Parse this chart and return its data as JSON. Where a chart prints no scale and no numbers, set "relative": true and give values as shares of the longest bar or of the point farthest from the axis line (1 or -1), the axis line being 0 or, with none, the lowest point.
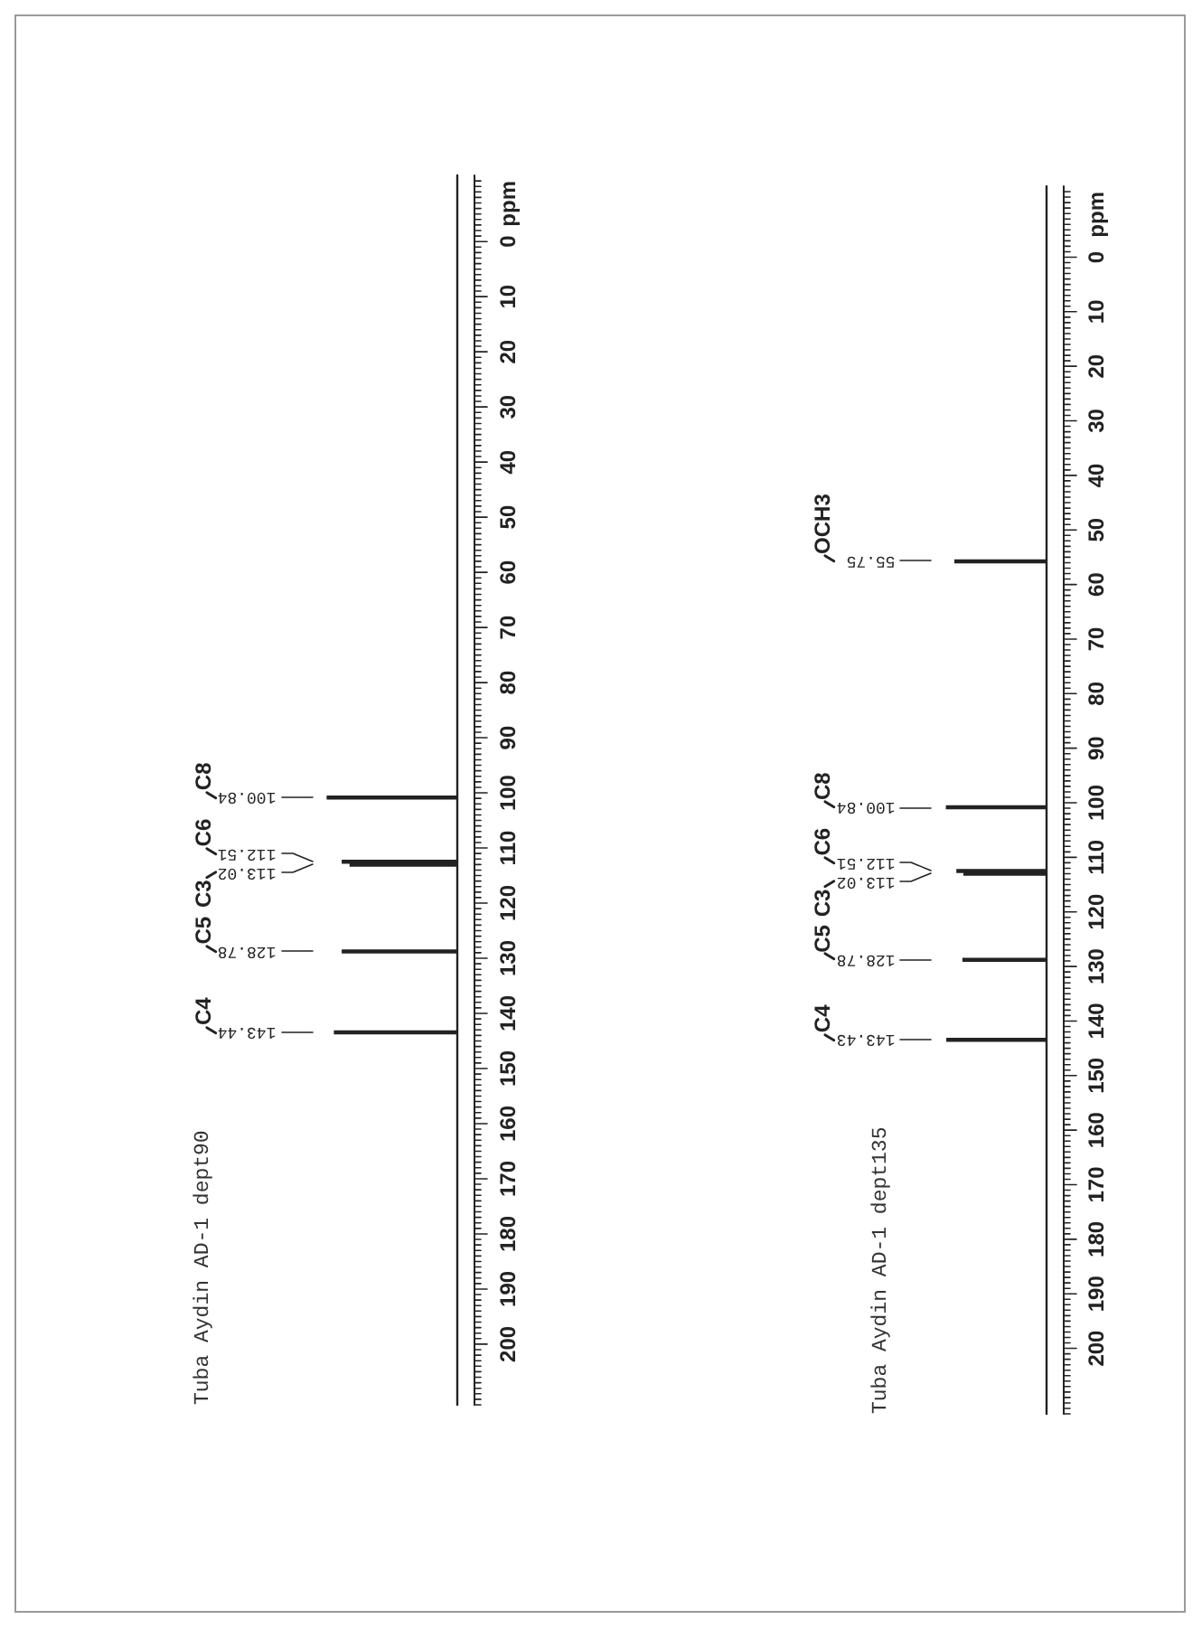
{
  "chart_data": [
    {
      "type": "bar",
      "orientation": "horizontal",
      "title": "Tuba Aydin AD-1 dept90",
      "ylabel": "ppm",
      "relative": true,
      "color": "#222222",
      "x": [
        143.44,
        128.78,
        113.02,
        112.51,
        100.84
      ],
      "values": [
        0.94,
        0.88,
        0.82,
        0.88,
        1
      ],
      "annotations": [
        "143.44",
        "C4",
        "128.78",
        "C5",
        "113.02",
        "C3",
        "112.51",
        "C6",
        "100.84",
        "C8"
      ],
      "ylim": [
        211,
        -12
      ],
      "yticks": [
        {
          "value": -11,
          "label": null
        },
        {
          "value": -10,
          "label": null
        },
        {
          "value": -9,
          "label": null
        },
        {
          "value": -8,
          "label": null
        },
        {
          "value": -7,
          "label": null
        },
        {
          "value": -6,
          "label": null
        },
        {
          "value": -5,
          "label": null
        },
        {
          "value": -4,
          "label": null
        },
        {
          "value": -3,
          "label": null
        },
        {
          "value": -2,
          "label": null
        },
        {
          "value": -1,
          "label": null
        },
        0,
        {
          "value": 1,
          "label": null
        },
        {
          "value": 2,
          "label": null
        },
        {
          "value": 3,
          "label": null
        },
        {
          "value": 4,
          "label": null
        },
        {
          "value": 5,
          "label": null
        },
        {
          "value": 6,
          "label": null
        },
        {
          "value": 7,
          "label": null
        },
        {
          "value": 8,
          "label": null
        },
        {
          "value": 9,
          "label": null
        },
        10,
        {
          "value": 11,
          "label": null
        },
        {
          "value": 12,
          "label": null
        },
        {
          "value": 13,
          "label": null
        },
        {
          "value": 14,
          "label": null
        },
        {
          "value": 15,
          "label": null
        },
        {
          "value": 16,
          "label": null
        },
        {
          "value": 17,
          "label": null
        },
        {
          "value": 18,
          "label": null
        },
        {
          "value": 19,
          "label": null
        },
        20,
        {
          "value": 21,
          "label": null
        },
        {
          "value": 22,
          "label": null
        },
        {
          "value": 23,
          "label": null
        },
        {
          "value": 24,
          "label": null
        },
        {
          "value": 25,
          "label": null
        },
        {
          "value": 26,
          "label": null
        },
        {
          "value": 27,
          "label": null
        },
        {
          "value": 28,
          "label": null
        },
        {
          "value": 29,
          "label": null
        },
        30,
        {
          "value": 31,
          "label": null
        },
        {
          "value": 32,
          "label": null
        },
        {
          "value": 33,
          "label": null
        },
        {
          "value": 34,
          "label": null
        },
        {
          "value": 35,
          "label": null
        },
        {
          "value": 36,
          "label": null
        },
        {
          "value": 37,
          "label": null
        },
        {
          "value": 38,
          "label": null
        },
        {
          "value": 39,
          "label": null
        },
        40,
        {
          "value": 41,
          "label": null
        },
        {
          "value": 42,
          "label": null
        },
        {
          "value": 43,
          "label": null
        },
        {
          "value": 44,
          "label": null
        },
        {
          "value": 45,
          "label": null
        },
        {
          "value": 46,
          "label": null
        },
        {
          "value": 47,
          "label": null
        },
        {
          "value": 48,
          "label": null
        },
        {
          "value": 49,
          "label": null
        },
        50,
        {
          "value": 51,
          "label": null
        },
        {
          "value": 52,
          "label": null
        },
        {
          "value": 53,
          "label": null
        },
        {
          "value": 54,
          "label": null
        },
        {
          "value": 55,
          "label": null
        },
        {
          "value": 56,
          "label": null
        },
        {
          "value": 57,
          "label": null
        },
        {
          "value": 58,
          "label": null
        },
        {
          "value": 59,
          "label": null
        },
        60,
        {
          "value": 61,
          "label": null
        },
        {
          "value": 62,
          "label": null
        },
        {
          "value": 63,
          "label": null
        },
        {
          "value": 64,
          "label": null
        },
        {
          "value": 65,
          "label": null
        },
        {
          "value": 66,
          "label": null
        },
        {
          "value": 67,
          "label": null
        },
        {
          "value": 68,
          "label": null
        },
        {
          "value": 69,
          "label": null
        },
        70,
        {
          "value": 71,
          "label": null
        },
        {
          "value": 72,
          "label": null
        },
        {
          "value": 73,
          "label": null
        },
        {
          "value": 74,
          "label": null
        },
        {
          "value": 75,
          "label": null
        },
        {
          "value": 76,
          "label": null
        },
        {
          "value": 77,
          "label": null
        },
        {
          "value": 78,
          "label": null
        },
        {
          "value": 79,
          "label": null
        },
        80,
        {
          "value": 81,
          "label": null
        },
        {
          "value": 82,
          "label": null
        },
        {
          "value": 83,
          "label": null
        },
        {
          "value": 84,
          "label": null
        },
        {
          "value": 85,
          "label": null
        },
        {
          "value": 86,
          "label": null
        },
        {
          "value": 87,
          "label": null
        },
        {
          "value": 88,
          "label": null
        },
        {
          "value": 89,
          "label": null
        },
        90,
        {
          "value": 91,
          "label": null
        },
        {
          "value": 92,
          "label": null
        },
        {
          "value": 93,
          "label": null
        },
        {
          "value": 94,
          "label": null
        },
        {
          "value": 95,
          "label": null
        },
        {
          "value": 96,
          "label": null
        },
        {
          "value": 97,
          "label": null
        },
        {
          "value": 98,
          "label": null
        },
        {
          "value": 99,
          "label": null
        },
        100,
        {
          "value": 101,
          "label": null
        },
        {
          "value": 102,
          "label": null
        },
        {
          "value": 103,
          "label": null
        },
        {
          "value": 104,
          "label": null
        },
        {
          "value": 105,
          "label": null
        },
        {
          "value": 106,
          "label": null
        },
        {
          "value": 107,
          "label": null
        },
        {
          "value": 108,
          "label": null
        },
        {
          "value": 109,
          "label": null
        },
        110,
        {
          "value": 111,
          "label": null
        },
        {
          "value": 112,
          "label": null
        },
        {
          "value": 113,
          "label": null
        },
        {
          "value": 114,
          "label": null
        },
        {
          "value": 115,
          "label": null
        },
        {
          "value": 116,
          "label": null
        },
        {
          "value": 117,
          "label": null
        },
        {
          "value": 118,
          "label": null
        },
        {
          "value": 119,
          "label": null
        },
        120,
        {
          "value": 121,
          "label": null
        },
        {
          "value": 122,
          "label": null
        },
        {
          "value": 123,
          "label": null
        },
        {
          "value": 124,
          "label": null
        },
        {
          "value": 125,
          "label": null
        },
        {
          "value": 126,
          "label": null
        },
        {
          "value": 127,
          "label": null
        },
        {
          "value": 128,
          "label": null
        },
        {
          "value": 129,
          "label": null
        },
        130,
        {
          "value": 131,
          "label": null
        },
        {
          "value": 132,
          "label": null
        },
        {
          "value": 133,
          "label": null
        },
        {
          "value": 134,
          "label": null
        },
        {
          "value": 135,
          "label": null
        },
        {
          "value": 136,
          "label": null
        },
        {
          "value": 137,
          "label": null
        },
        {
          "value": 138,
          "label": null
        },
        {
          "value": 139,
          "label": null
        },
        140,
        {
          "value": 141,
          "label": null
        },
        {
          "value": 142,
          "label": null
        },
        {
          "value": 143,
          "label": null
        },
        {
          "value": 144,
          "label": null
        },
        {
          "value": 145,
          "label": null
        },
        {
          "value": 146,
          "label": null
        },
        {
          "value": 147,
          "label": null
        },
        {
          "value": 148,
          "label": null
        },
        {
          "value": 149,
          "label": null
        },
        150,
        {
          "value": 151,
          "label": null
        },
        {
          "value": 152,
          "label": null
        },
        {
          "value": 153,
          "label": null
        },
        {
          "value": 154,
          "label": null
        },
        {
          "value": 155,
          "label": null
        },
        {
          "value": 156,
          "label": null
        },
        {
          "value": 157,
          "label": null
        },
        {
          "value": 158,
          "label": null
        },
        {
          "value": 159,
          "label": null
        },
        160,
        {
          "value": 161,
          "label": null
        },
        {
          "value": 162,
          "label": null
        },
        {
          "value": 163,
          "label": null
        },
        {
          "value": 164,
          "label": null
        },
        {
          "value": 165,
          "label": null
        },
        {
          "value": 166,
          "label": null
        },
        {
          "value": 167,
          "label": null
        },
        {
          "value": 168,
          "label": null
        },
        {
          "value": 169,
          "label": null
        },
        170,
        {
          "value": 171,
          "label": null
        },
        {
          "value": 172,
          "label": null
        },
        {
          "value": 173,
          "label": null
        },
        {
          "value": 174,
          "label": null
        },
        {
          "value": 175,
          "label": null
        },
        {
          "value": 176,
          "label": null
        },
        {
          "value": 177,
          "label": null
        },
        {
          "value": 178,
          "label": null
        },
        {
          "value": 179,
          "label": null
        },
        180,
        {
          "value": 181,
          "label": null
        },
        {
          "value": 182,
          "label": null
        },
        {
          "value": 183,
          "label": null
        },
        {
          "value": 184,
          "label": null
        },
        {
          "value": 185,
          "label": null
        },
        {
          "value": 186,
          "label": null
        },
        {
          "value": 187,
          "label": null
        },
        {
          "value": 188,
          "label": null
        },
        {
          "value": 189,
          "label": null
        },
        190,
        {
          "value": 191,
          "label": null
        },
        {
          "value": 192,
          "label": null
        },
        {
          "value": 193,
          "label": null
        },
        {
          "value": 194,
          "label": null
        },
        {
          "value": 195,
          "label": null
        },
        {
          "value": 196,
          "label": null
        },
        {
          "value": 197,
          "label": null
        },
        {
          "value": 198,
          "label": null
        },
        {
          "value": 199,
          "label": null
        },
        200,
        {
          "value": 201,
          "label": null
        },
        {
          "value": 202,
          "label": null
        },
        {
          "value": 203,
          "label": null
        },
        {
          "value": 204,
          "label": null
        },
        {
          "value": 205,
          "label": null
        },
        {
          "value": 206,
          "label": null
        },
        {
          "value": 207,
          "label": null
        },
        {
          "value": 208,
          "label": null
        },
        {
          "value": 209,
          "label": null
        },
        {
          "value": 210,
          "label": null
        },
        {
          "value": 211,
          "label": null
        }
      ]
    },
    {
      "type": "bar",
      "orientation": "horizontal",
      "title": "Tuba Aydin AD-1 dept135",
      "ylabel": "ppm",
      "relative": true,
      "color": "#222222",
      "x": [
        143.43,
        128.78,
        113.02,
        112.51,
        100.84,
        55.75
      ],
      "values": [
        0.99,
        0.83,
        0.82,
        0.89,
        1,
        0.91
      ],
      "annotations": [
        "143.43",
        "C4",
        "128.78",
        "C5",
        "113.02",
        "C3",
        "112.51",
        "C6",
        "100.84",
        "C8",
        "55.75",
        "OCH3"
      ],
      "ylim": [
        212,
        -13
      ],
      "yticks": [
        {
          "value": -12,
          "label": null
        },
        {
          "value": -11,
          "label": null
        },
        {
          "value": -10,
          "label": null
        },
        {
          "value": -9,
          "label": null
        },
        {
          "value": -8,
          "label": null
        },
        {
          "value": -7,
          "label": null
        },
        {
          "value": -6,
          "label": null
        },
        {
          "value": -5,
          "label": null
        },
        {
          "value": -4,
          "label": null
        },
        {
          "value": -3,
          "label": null
        },
        {
          "value": -2,
          "label": null
        },
        {
          "value": -1,
          "label": null
        },
        0,
        {
          "value": 1,
          "label": null
        },
        {
          "value": 2,
          "label": null
        },
        {
          "value": 3,
          "label": null
        },
        {
          "value": 4,
          "label": null
        },
        {
          "value": 5,
          "label": null
        },
        {
          "value": 6,
          "label": null
        },
        {
          "value": 7,
          "label": null
        },
        {
          "value": 8,
          "label": null
        },
        {
          "value": 9,
          "label": null
        },
        10,
        {
          "value": 11,
          "label": null
        },
        {
          "value": 12,
          "label": null
        },
        {
          "value": 13,
          "label": null
        },
        {
          "value": 14,
          "label": null
        },
        {
          "value": 15,
          "label": null
        },
        {
          "value": 16,
          "label": null
        },
        {
          "value": 17,
          "label": null
        },
        {
          "value": 18,
          "label": null
        },
        {
          "value": 19,
          "label": null
        },
        20,
        {
          "value": 21,
          "label": null
        },
        {
          "value": 22,
          "label": null
        },
        {
          "value": 23,
          "label": null
        },
        {
          "value": 24,
          "label": null
        },
        {
          "value": 25,
          "label": null
        },
        {
          "value": 26,
          "label": null
        },
        {
          "value": 27,
          "label": null
        },
        {
          "value": 28,
          "label": null
        },
        {
          "value": 29,
          "label": null
        },
        30,
        {
          "value": 31,
          "label": null
        },
        {
          "value": 32,
          "label": null
        },
        {
          "value": 33,
          "label": null
        },
        {
          "value": 34,
          "label": null
        },
        {
          "value": 35,
          "label": null
        },
        {
          "value": 36,
          "label": null
        },
        {
          "value": 37,
          "label": null
        },
        {
          "value": 38,
          "label": null
        },
        {
          "value": 39,
          "label": null
        },
        40,
        {
          "value": 41,
          "label": null
        },
        {
          "value": 42,
          "label": null
        },
        {
          "value": 43,
          "label": null
        },
        {
          "value": 44,
          "label": null
        },
        {
          "value": 45,
          "label": null
        },
        {
          "value": 46,
          "label": null
        },
        {
          "value": 47,
          "label": null
        },
        {
          "value": 48,
          "label": null
        },
        {
          "value": 49,
          "label": null
        },
        50,
        {
          "value": 51,
          "label": null
        },
        {
          "value": 52,
          "label": null
        },
        {
          "value": 53,
          "label": null
        },
        {
          "value": 54,
          "label": null
        },
        {
          "value": 55,
          "label": null
        },
        {
          "value": 56,
          "label": null
        },
        {
          "value": 57,
          "label": null
        },
        {
          "value": 58,
          "label": null
        },
        {
          "value": 59,
          "label": null
        },
        60,
        {
          "value": 61,
          "label": null
        },
        {
          "value": 62,
          "label": null
        },
        {
          "value": 63,
          "label": null
        },
        {
          "value": 64,
          "label": null
        },
        {
          "value": 65,
          "label": null
        },
        {
          "value": 66,
          "label": null
        },
        {
          "value": 67,
          "label": null
        },
        {
          "value": 68,
          "label": null
        },
        {
          "value": 69,
          "label": null
        },
        70,
        {
          "value": 71,
          "label": null
        },
        {
          "value": 72,
          "label": null
        },
        {
          "value": 73,
          "label": null
        },
        {
          "value": 74,
          "label": null
        },
        {
          "value": 75,
          "label": null
        },
        {
          "value": 76,
          "label": null
        },
        {
          "value": 77,
          "label": null
        },
        {
          "value": 78,
          "label": null
        },
        {
          "value": 79,
          "label": null
        },
        80,
        {
          "value": 81,
          "label": null
        },
        {
          "value": 82,
          "label": null
        },
        {
          "value": 83,
          "label": null
        },
        {
          "value": 84,
          "label": null
        },
        {
          "value": 85,
          "label": null
        },
        {
          "value": 86,
          "label": null
        },
        {
          "value": 87,
          "label": null
        },
        {
          "value": 88,
          "label": null
        },
        {
          "value": 89,
          "label": null
        },
        90,
        {
          "value": 91,
          "label": null
        },
        {
          "value": 92,
          "label": null
        },
        {
          "value": 93,
          "label": null
        },
        {
          "value": 94,
          "label": null
        },
        {
          "value": 95,
          "label": null
        },
        {
          "value": 96,
          "label": null
        },
        {
          "value": 97,
          "label": null
        },
        {
          "value": 98,
          "label": null
        },
        {
          "value": 99,
          "label": null
        },
        100,
        {
          "value": 101,
          "label": null
        },
        {
          "value": 102,
          "label": null
        },
        {
          "value": 103,
          "label": null
        },
        {
          "value": 104,
          "label": null
        },
        {
          "value": 105,
          "label": null
        },
        {
          "value": 106,
          "label": null
        },
        {
          "value": 107,
          "label": null
        },
        {
          "value": 108,
          "label": null
        },
        {
          "value": 109,
          "label": null
        },
        110,
        {
          "value": 111,
          "label": null
        },
        {
          "value": 112,
          "label": null
        },
        {
          "value": 113,
          "label": null
        },
        {
          "value": 114,
          "label": null
        },
        {
          "value": 115,
          "label": null
        },
        {
          "value": 116,
          "label": null
        },
        {
          "value": 117,
          "label": null
        },
        {
          "value": 118,
          "label": null
        },
        {
          "value": 119,
          "label": null
        },
        120,
        {
          "value": 121,
          "label": null
        },
        {
          "value": 122,
          "label": null
        },
        {
          "value": 123,
          "label": null
        },
        {
          "value": 124,
          "label": null
        },
        {
          "value": 125,
          "label": null
        },
        {
          "value": 126,
          "label": null
        },
        {
          "value": 127,
          "label": null
        },
        {
          "value": 128,
          "label": null
        },
        {
          "value": 129,
          "label": null
        },
        130,
        {
          "value": 131,
          "label": null
        },
        {
          "value": 132,
          "label": null
        },
        {
          "value": 133,
          "label": null
        },
        {
          "value": 134,
          "label": null
        },
        {
          "value": 135,
          "label": null
        },
        {
          "value": 136,
          "label": null
        },
        {
          "value": 137,
          "label": null
        },
        {
          "value": 138,
          "label": null
        },
        {
          "value": 139,
          "label": null
        },
        140,
        {
          "value": 141,
          "label": null
        },
        {
          "value": 142,
          "label": null
        },
        {
          "value": 143,
          "label": null
        },
        {
          "value": 144,
          "label": null
        },
        {
          "value": 145,
          "label": null
        },
        {
          "value": 146,
          "label": null
        },
        {
          "value": 147,
          "label": null
        },
        {
          "value": 148,
          "label": null
        },
        {
          "value": 149,
          "label": null
        },
        150,
        {
          "value": 151,
          "label": null
        },
        {
          "value": 152,
          "label": null
        },
        {
          "value": 153,
          "label": null
        },
        {
          "value": 154,
          "label": null
        },
        {
          "value": 155,
          "label": null
        },
        {
          "value": 156,
          "label": null
        },
        {
          "value": 157,
          "label": null
        },
        {
          "value": 158,
          "label": null
        },
        {
          "value": 159,
          "label": null
        },
        160,
        {
          "value": 161,
          "label": null
        },
        {
          "value": 162,
          "label": null
        },
        {
          "value": 163,
          "label": null
        },
        {
          "value": 164,
          "label": null
        },
        {
          "value": 165,
          "label": null
        },
        {
          "value": 166,
          "label": null
        },
        {
          "value": 167,
          "label": null
        },
        {
          "value": 168,
          "label": null
        },
        {
          "value": 169,
          "label": null
        },
        170,
        {
          "value": 171,
          "label": null
        },
        {
          "value": 172,
          "label": null
        },
        {
          "value": 173,
          "label": null
        },
        {
          "value": 174,
          "label": null
        },
        {
          "value": 175,
          "label": null
        },
        {
          "value": 176,
          "label": null
        },
        {
          "value": 177,
          "label": null
        },
        {
          "value": 178,
          "label": null
        },
        {
          "value": 179,
          "label": null
        },
        180,
        {
          "value": 181,
          "label": null
        },
        {
          "value": 182,
          "label": null
        },
        {
          "value": 183,
          "label": null
        },
        {
          "value": 184,
          "label": null
        },
        {
          "value": 185,
          "label": null
        },
        {
          "value": 186,
          "label": null
        },
        {
          "value": 187,
          "label": null
        },
        {
          "value": 188,
          "label": null
        },
        {
          "value": 189,
          "label": null
        },
        190,
        {
          "value": 191,
          "label": null
        },
        {
          "value": 192,
          "label": null
        },
        {
          "value": 193,
          "label": null
        },
        {
          "value": 194,
          "label": null
        },
        {
          "value": 195,
          "label": null
        },
        {
          "value": 196,
          "label": null
        },
        {
          "value": 197,
          "label": null
        },
        {
          "value": 198,
          "label": null
        },
        {
          "value": 199,
          "label": null
        },
        200,
        {
          "value": 201,
          "label": null
        },
        {
          "value": 202,
          "label": null
        },
        {
          "value": 203,
          "label": null
        },
        {
          "value": 204,
          "label": null
        },
        {
          "value": 205,
          "label": null
        },
        {
          "value": 206,
          "label": null
        },
        {
          "value": 207,
          "label": null
        },
        {
          "value": 208,
          "label": null
        },
        {
          "value": 209,
          "label": null
        },
        {
          "value": 210,
          "label": null
        },
        {
          "value": 211,
          "label": null
        },
        {
          "value": 212,
          "label": null
        }
      ]
    }
  ]
}
